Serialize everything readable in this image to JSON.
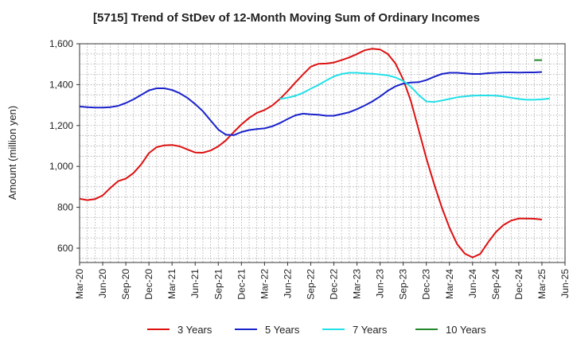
{
  "chart_data": {
    "type": "line",
    "title": "[5715]  Trend of StDev of 12-Month Moving Sum of Ordinary Incomes",
    "xlabel": "",
    "ylabel": "Amount (million yen)",
    "ylim": [
      530,
      1600
    ],
    "yticks": [
      600,
      800,
      "1,000",
      "1,200",
      "1,400",
      "1,600"
    ],
    "ytick_values": [
      600,
      800,
      1000,
      1200,
      1400,
      1600
    ],
    "xlim": [
      0,
      63
    ],
    "xticks": [
      "Mar-20",
      "Jun-20",
      "Sep-20",
      "Dec-20",
      "Mar-21",
      "Jun-21",
      "Sep-21",
      "Dec-21",
      "Mar-22",
      "Jun-22",
      "Sep-22",
      "Dec-22",
      "Mar-23",
      "Jun-23",
      "Sep-23",
      "Dec-23",
      "Mar-24",
      "Jun-24",
      "Sep-24",
      "Dec-24",
      "Mar-25",
      "Jun-25"
    ],
    "xtick_index": [
      0,
      3,
      6,
      9,
      12,
      15,
      18,
      21,
      24,
      27,
      30,
      33,
      36,
      39,
      42,
      45,
      48,
      51,
      54,
      57,
      60,
      63
    ],
    "grid": true,
    "legend_position": "bottom",
    "series": [
      {
        "name": "3 Years",
        "color": "#dd1111",
        "start_index": 0,
        "values": [
          842,
          835,
          840,
          858,
          895,
          928,
          940,
          968,
          1010,
          1065,
          1094,
          1103,
          1105,
          1098,
          1083,
          1068,
          1067,
          1078,
          1098,
          1128,
          1168,
          1205,
          1237,
          1262,
          1276,
          1298,
          1330,
          1368,
          1410,
          1450,
          1488,
          1502,
          1503,
          1508,
          1520,
          1533,
          1550,
          1568,
          1576,
          1572,
          1550,
          1503,
          1425,
          1320,
          1180,
          1040,
          915,
          800,
          700,
          620,
          573,
          555,
          572,
          628,
          678,
          713,
          735,
          745,
          745,
          744,
          740
        ]
      },
      {
        "name": "5 Years",
        "color": "#1a22cc",
        "start_index": 0,
        "values": [
          1293,
          1290,
          1288,
          1288,
          1290,
          1296,
          1310,
          1328,
          1350,
          1372,
          1382,
          1382,
          1374,
          1358,
          1335,
          1305,
          1270,
          1225,
          1180,
          1155,
          1153,
          1168,
          1178,
          1183,
          1186,
          1196,
          1212,
          1232,
          1250,
          1258,
          1255,
          1253,
          1248,
          1248,
          1256,
          1265,
          1280,
          1298,
          1318,
          1342,
          1370,
          1392,
          1405,
          1410,
          1412,
          1422,
          1438,
          1452,
          1458,
          1458,
          1455,
          1452,
          1452,
          1456,
          1458,
          1460,
          1460,
          1459,
          1460,
          1460,
          1462
        ]
      },
      {
        "name": "7 Years",
        "color": "#22e0e8",
        "start_index": 26,
        "values": [
          1330,
          1336,
          1345,
          1360,
          1380,
          1398,
          1420,
          1440,
          1452,
          1458,
          1458,
          1455,
          1453,
          1450,
          1445,
          1435,
          1418,
          1390,
          1350,
          1318,
          1315,
          1322,
          1330,
          1338,
          1343,
          1346,
          1347,
          1347,
          1346,
          1342,
          1336,
          1330,
          1326,
          1326,
          1328,
          1332
        ]
      },
      {
        "name": "10 Years",
        "color": "#22882a",
        "start_index": 59,
        "values": [
          1520,
          1520
        ]
      }
    ]
  }
}
